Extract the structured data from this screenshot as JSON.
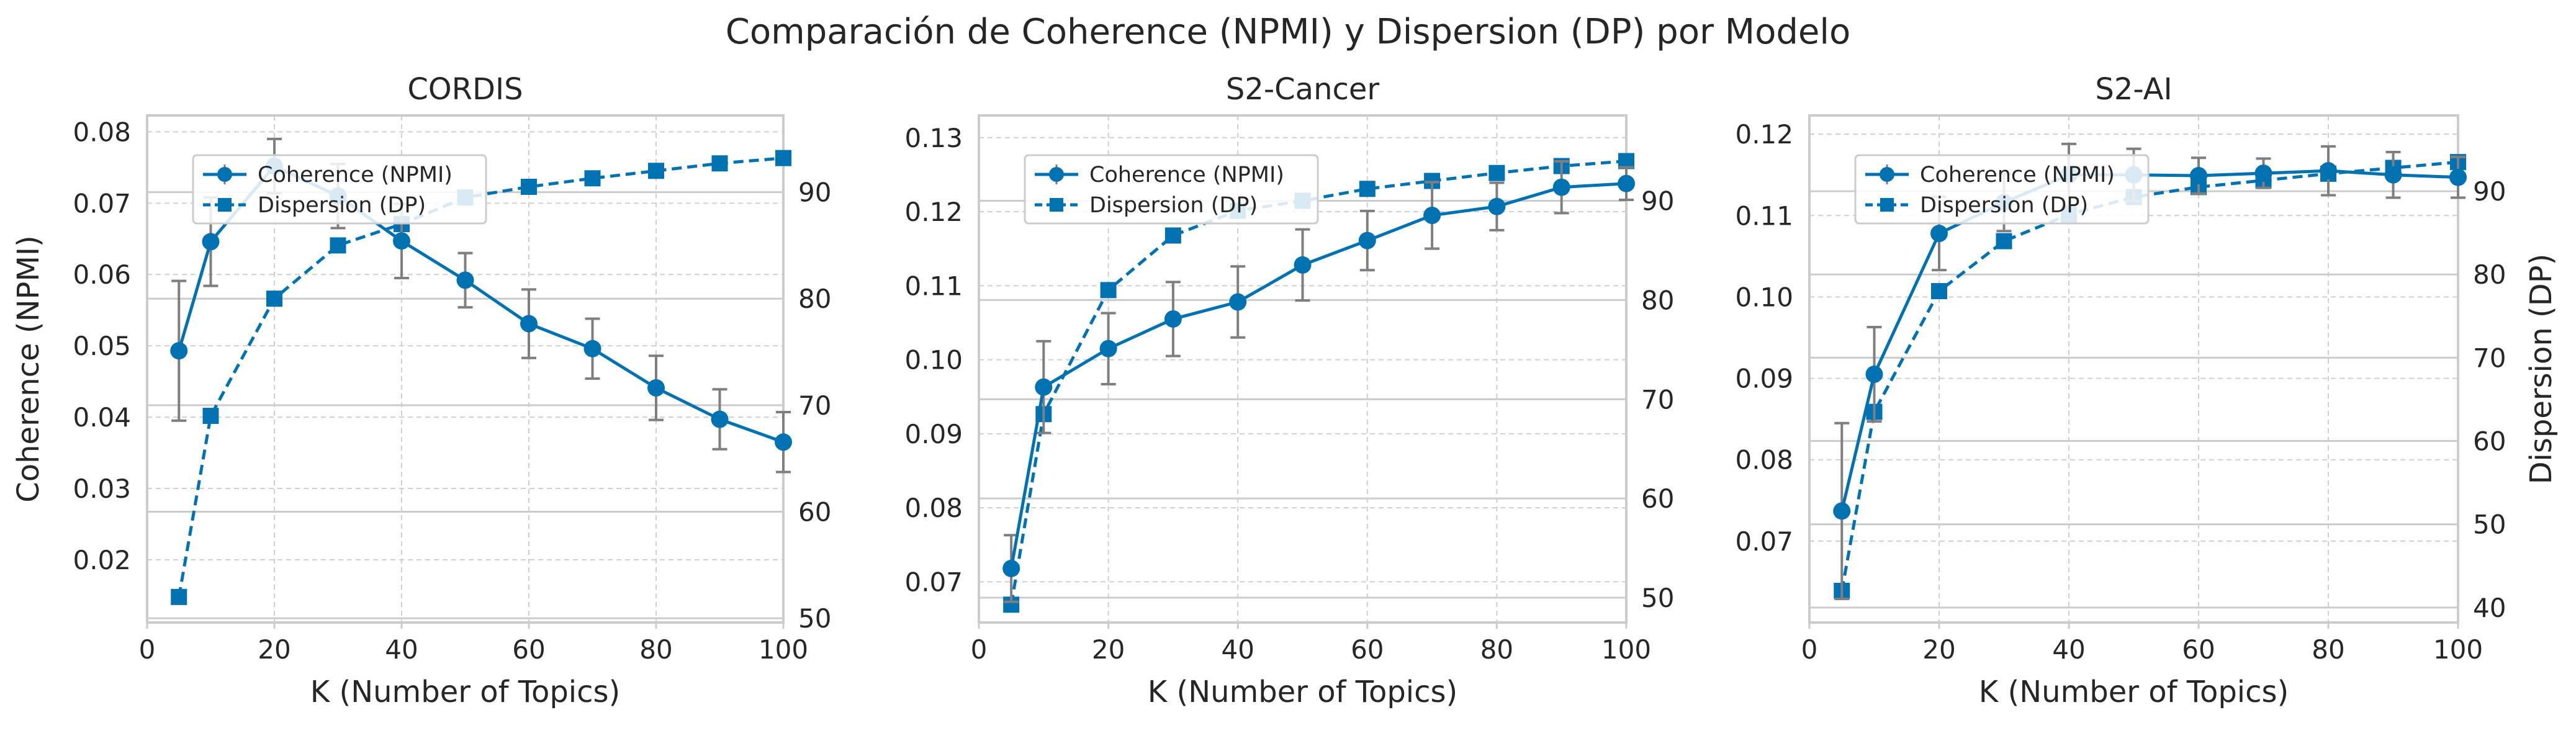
{
  "figure": {
    "suptitle": "Comparación de Coherence (NPMI) y Dispersion (DP) por Modelo"
  },
  "chart_data": [
    {
      "type": "line",
      "title": "CORDIS",
      "xlabel": "K (Number of Topics)",
      "ylabel": "Coherence (NPMI)",
      "y2label": "",
      "xlim": [
        0,
        100
      ],
      "ylim": [
        0.0112,
        0.0823
      ],
      "y2lim": [
        49.6,
        97.2
      ],
      "xticks": [
        0,
        20,
        40,
        60,
        80,
        100
      ],
      "yticks": [
        0.02,
        0.03,
        0.04,
        0.05,
        0.06,
        0.07,
        0.08
      ],
      "y2ticks": [
        50,
        60,
        70,
        80,
        90
      ],
      "legend": {
        "placement": "upper-left",
        "entries": [
          "Coherence (NPMI)",
          "Dispersion (DP)"
        ]
      },
      "grid": true,
      "series": [
        {
          "name": "Coherence (NPMI)",
          "axis": "left",
          "marker": "circle",
          "style": "solid",
          "x": [
            5,
            10,
            20,
            30,
            40,
            50,
            60,
            70,
            80,
            90,
            100
          ],
          "y": [
            0.0493,
            0.0646,
            0.0752,
            0.071,
            0.0647,
            0.0592,
            0.0531,
            0.0496,
            0.0441,
            0.0397,
            0.0365
          ],
          "err": [
            0.0098,
            0.0062,
            0.0038,
            0.0045,
            0.0052,
            0.0038,
            0.0048,
            0.0042,
            0.0045,
            0.0042,
            0.0042
          ]
        },
        {
          "name": "Dispersion (DP)",
          "axis": "right",
          "marker": "square",
          "style": "dashed",
          "x": [
            5,
            10,
            20,
            30,
            40,
            50,
            60,
            70,
            80,
            90,
            100
          ],
          "y": [
            52,
            69,
            80,
            85,
            87,
            89.5,
            90.5,
            91.3,
            92,
            92.7,
            93.2
          ]
        }
      ]
    },
    {
      "type": "line",
      "title": "S2-Cancer",
      "xlabel": "K (Number of Topics)",
      "ylabel": "",
      "y2label": "",
      "xlim": [
        0,
        100
      ],
      "ylim": [
        0.0645,
        0.133
      ],
      "y2lim": [
        47.5,
        98.6
      ],
      "xticks": [
        0,
        20,
        40,
        60,
        80,
        100
      ],
      "yticks": [
        0.07,
        0.08,
        0.09,
        0.1,
        0.11,
        0.12,
        0.13
      ],
      "y2ticks": [
        50,
        60,
        70,
        80,
        90
      ],
      "legend": {
        "placement": "upper-left",
        "entries": [
          "Coherence (NPMI)",
          "Dispersion (DP)"
        ]
      },
      "grid": true,
      "series": [
        {
          "name": "Coherence (NPMI)",
          "axis": "left",
          "marker": "circle",
          "style": "solid",
          "x": [
            5,
            10,
            20,
            30,
            40,
            50,
            60,
            70,
            80,
            90,
            100
          ],
          "y": [
            0.0718,
            0.0963,
            0.1015,
            0.1055,
            0.1078,
            0.1128,
            0.1161,
            0.1195,
            0.1207,
            0.1233,
            0.1238
          ],
          "err": [
            0.0045,
            0.0062,
            0.0048,
            0.005,
            0.0048,
            0.0048,
            0.004,
            0.0045,
            0.0032,
            0.0035,
            0.0022
          ]
        },
        {
          "name": "Dispersion (DP)",
          "axis": "right",
          "marker": "square",
          "style": "dashed",
          "x": [
            5,
            10,
            20,
            30,
            40,
            50,
            60,
            70,
            80,
            90,
            100
          ],
          "y": [
            49.3,
            68.5,
            81,
            86.5,
            89,
            90,
            91.2,
            92,
            92.8,
            93.5,
            94
          ]
        }
      ]
    },
    {
      "type": "line",
      "title": "S2-AI",
      "xlabel": "K (Number of Topics)",
      "ylabel": "",
      "y2label": "Dispersion (DP)",
      "xlim": [
        0,
        100
      ],
      "ylim": [
        0.06,
        0.1223
      ],
      "y2lim": [
        38.2,
        99.1
      ],
      "xticks": [
        0,
        20,
        40,
        60,
        80,
        100
      ],
      "yticks": [
        0.07,
        0.08,
        0.09,
        0.1,
        0.11,
        0.12
      ],
      "y2ticks": [
        40,
        50,
        60,
        70,
        80,
        90
      ],
      "legend": {
        "placement": "upper-left",
        "entries": [
          "Coherence (NPMI)",
          "Dispersion (DP)"
        ]
      },
      "grid": true,
      "series": [
        {
          "name": "Coherence (NPMI)",
          "axis": "left",
          "marker": "circle",
          "style": "solid",
          "x": [
            5,
            10,
            20,
            30,
            40,
            50,
            60,
            70,
            80,
            90,
            100
          ],
          "y": [
            0.0737,
            0.0905,
            0.1078,
            0.1116,
            0.115,
            0.115,
            0.1149,
            0.1152,
            0.1155,
            0.115,
            0.1147
          ],
          "err": [
            0.0108,
            0.0058,
            0.0045,
            0.0035,
            0.0038,
            0.0032,
            0.0022,
            0.0018,
            0.003,
            0.0028,
            0.0025
          ]
        },
        {
          "name": "Dispersion (DP)",
          "axis": "right",
          "marker": "square",
          "style": "dashed",
          "x": [
            5,
            10,
            20,
            30,
            40,
            50,
            60,
            70,
            80,
            90,
            100
          ],
          "y": [
            42,
            63.5,
            78,
            84,
            87.2,
            89.3,
            90.5,
            91.3,
            92.1,
            92.8,
            93.5
          ]
        }
      ]
    }
  ]
}
